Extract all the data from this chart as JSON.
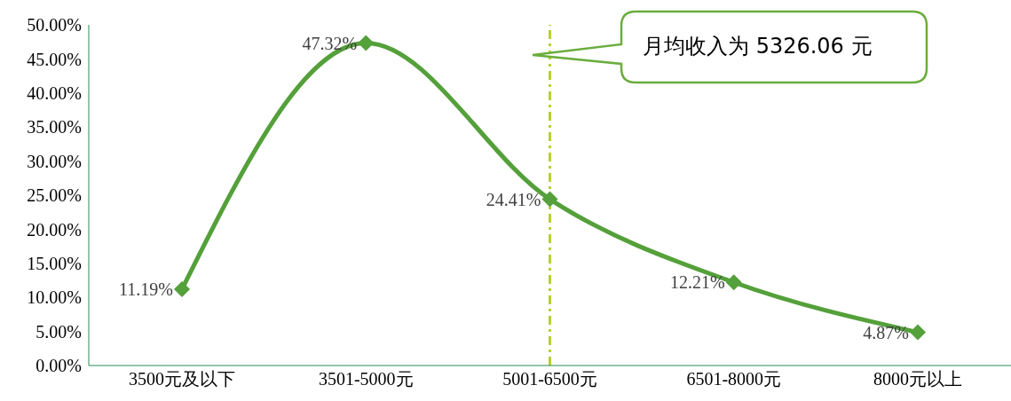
{
  "chart_data": {
    "type": "line",
    "categories": [
      "3500元及以下",
      "3501-5000元",
      "5001-6500元",
      "6501-8000元",
      "8000元以上"
    ],
    "series": [
      {
        "color": "#54a03a",
        "values": [
          11.19,
          47.32,
          24.41,
          12.21,
          4.87
        ],
        "value_labels": [
          "11.19%",
          "47.32%",
          "24.41%",
          "12.21%",
          "4.87%"
        ]
      }
    ],
    "ylim": [
      0,
      50
    ],
    "yticks": [
      {
        "value": 0,
        "label": "0.00%"
      },
      {
        "value": 5,
        "label": "5.00%"
      },
      {
        "value": 10,
        "label": "10.00%"
      },
      {
        "value": 15,
        "label": "15.00%"
      },
      {
        "value": 20,
        "label": "20.00%"
      },
      {
        "value": 25,
        "label": "25.00%"
      },
      {
        "value": 30,
        "label": "30.00%"
      },
      {
        "value": 35,
        "label": "35.00%"
      },
      {
        "value": 40,
        "label": "40.00%"
      },
      {
        "value": 45,
        "label": "45.00%"
      },
      {
        "value": 50,
        "label": "50.00%"
      }
    ],
    "ref_lines": [
      {
        "axis": "x",
        "value": "5001-6500元",
        "color": "#b9d02e",
        "line_style": "dashed"
      }
    ],
    "annotations": [
      "月均收入为 5326.06 元"
    ],
    "marker": "diamond",
    "line_style": "solid",
    "grid": false,
    "legend": false
  }
}
